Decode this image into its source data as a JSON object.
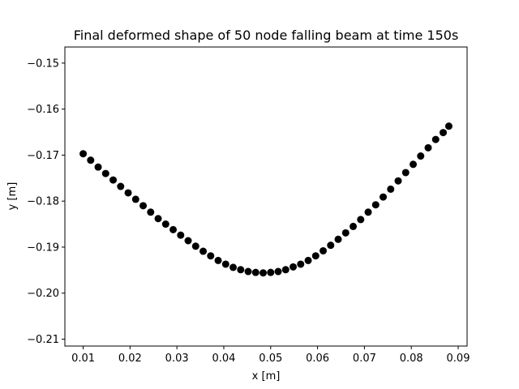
{
  "chart_data": {
    "type": "scatter",
    "title": "Final deformed shape of 50 node falling beam at time 150s",
    "xlabel": "x [m]",
    "ylabel": "y [m]",
    "xlim": [
      0.0061,
      0.0919
    ],
    "ylim": [
      -0.2115,
      -0.1465
    ],
    "xticks": [
      0.01,
      0.02,
      0.03,
      0.04,
      0.05,
      0.06,
      0.07,
      0.08,
      0.09
    ],
    "xtick_labels": [
      "0.01",
      "0.02",
      "0.03",
      "0.04",
      "0.05",
      "0.06",
      "0.07",
      "0.08",
      "0.09"
    ],
    "yticks": [
      -0.15,
      -0.16,
      -0.17,
      -0.18,
      -0.19,
      -0.2,
      -0.21
    ],
    "ytick_labels": [
      "−0.15",
      "−0.16",
      "−0.17",
      "−0.18",
      "−0.19",
      "−0.20",
      "−0.21"
    ],
    "grid": false,
    "marker_color": "#000000",
    "series": [
      {
        "x": [
          0.01,
          0.0116,
          0.0132,
          0.0148,
          0.0164,
          0.018,
          0.0196,
          0.0212,
          0.0228,
          0.0244,
          0.026,
          0.0276,
          0.0292,
          0.0308,
          0.0324,
          0.034,
          0.0356,
          0.0372,
          0.0388,
          0.0404,
          0.042,
          0.0436,
          0.0452,
          0.0468,
          0.0484,
          0.05,
          0.0516,
          0.0532,
          0.0548,
          0.0564,
          0.058,
          0.0596,
          0.0612,
          0.0628,
          0.0644,
          0.066,
          0.0676,
          0.0692,
          0.0708,
          0.0724,
          0.074,
          0.0756,
          0.0772,
          0.0788,
          0.0804,
          0.082,
          0.0836,
          0.0852,
          0.0868,
          0.088
        ],
        "y": [
          -0.1697,
          -0.1711,
          -0.1726,
          -0.174,
          -0.1754,
          -0.1768,
          -0.1782,
          -0.1796,
          -0.181,
          -0.1824,
          -0.1838,
          -0.185,
          -0.1862,
          -0.1874,
          -0.1886,
          -0.1898,
          -0.1909,
          -0.1919,
          -0.1929,
          -0.1937,
          -0.1944,
          -0.1949,
          -0.1953,
          -0.1955,
          -0.1956,
          -0.1955,
          -0.1953,
          -0.1949,
          -0.1943,
          -0.1937,
          -0.1929,
          -0.1919,
          -0.1908,
          -0.1896,
          -0.1883,
          -0.1869,
          -0.1855,
          -0.184,
          -0.1824,
          -0.1808,
          -0.1791,
          -0.1774,
          -0.1756,
          -0.1738,
          -0.172,
          -0.1702,
          -0.1684,
          -0.1666,
          -0.1651,
          -0.1637
        ]
      }
    ]
  }
}
